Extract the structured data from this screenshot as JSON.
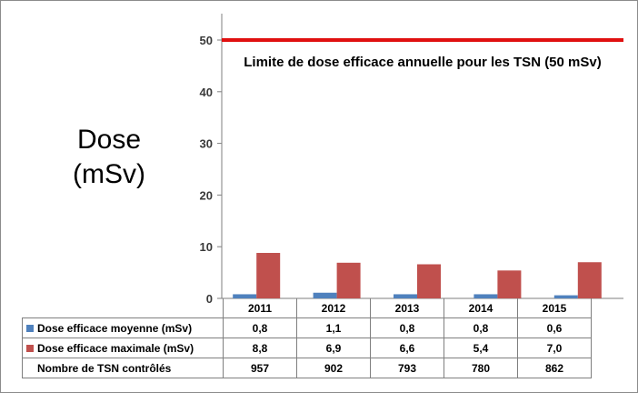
{
  "chart_data": {
    "type": "bar",
    "ylabel": [
      "Dose",
      "(mSv)"
    ],
    "ylim": [
      0,
      50
    ],
    "yticks": [
      0,
      10,
      20,
      30,
      40,
      50
    ],
    "categories": [
      "2011",
      "2012",
      "2013",
      "2014",
      "2015"
    ],
    "series": [
      {
        "name": "Dose efficace moyenne (mSv)",
        "color": "#4f81bd",
        "values": [
          0.8,
          1.1,
          0.8,
          0.8,
          0.6
        ],
        "labels": [
          "0,8",
          "1,1",
          "0,8",
          "0,8",
          "0,6"
        ]
      },
      {
        "name": "Dose efficace maximale (mSv)",
        "color": "#c0504d",
        "values": [
          8.8,
          6.9,
          6.6,
          5.4,
          7.0
        ],
        "labels": [
          "8,8",
          "6,9",
          "6,6",
          "5,4",
          "7,0"
        ]
      }
    ],
    "limit": {
      "value": 50,
      "color": "#e01010",
      "label": "Limite de dose efficace annuelle pour les TSN (50 mSv)"
    },
    "table_extra_row": {
      "name": "Nombre de TSN contrôlés",
      "values": [
        "957",
        "902",
        "793",
        "780",
        "862"
      ]
    },
    "grid": false,
    "legend": "data-table"
  }
}
